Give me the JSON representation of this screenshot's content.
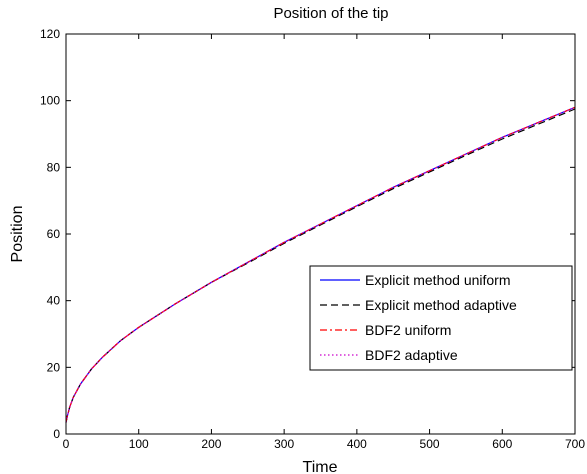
{
  "chart_data": {
    "type": "line",
    "title": "Position of the tip",
    "xlabel": "Time",
    "ylabel": "Position",
    "xlim": [
      0,
      700
    ],
    "ylim": [
      0,
      120
    ],
    "xticks": [
      0,
      100,
      200,
      300,
      400,
      500,
      600,
      700
    ],
    "yticks": [
      0,
      20,
      40,
      60,
      80,
      100,
      120
    ],
    "grid": false,
    "legend_position": "lower-right",
    "x": [
      0,
      2,
      5,
      10,
      20,
      35,
      50,
      75,
      100,
      150,
      200,
      250,
      300,
      350,
      400,
      450,
      500,
      550,
      600,
      650,
      700
    ],
    "series": [
      {
        "name": "Explicit method uniform",
        "color": "#0000ff",
        "dash": "solid",
        "values": [
          3.5,
          5.5,
          8,
          11,
          15,
          19.5,
          23,
          28,
          32,
          39,
          45.5,
          51.5,
          57.5,
          63,
          68.5,
          74,
          79,
          84,
          89,
          93.5,
          98
        ]
      },
      {
        "name": "Explicit method adaptive",
        "color": "#000000",
        "dash": "dashed",
        "values": [
          3.5,
          5.5,
          8,
          11,
          15,
          19.5,
          23,
          28,
          32,
          39,
          45.5,
          51.3,
          57.2,
          62.7,
          68.2,
          73.6,
          78.6,
          83.6,
          88.5,
          93,
          97.5
        ]
      },
      {
        "name": "BDF2 uniform",
        "color": "#ff0000",
        "dash": "dashdot",
        "values": [
          3.5,
          5.5,
          8,
          11,
          15,
          19.5,
          23,
          28,
          32,
          39,
          45.5,
          51.5,
          57.5,
          63,
          68.5,
          74,
          79,
          84,
          89,
          93.5,
          98
        ]
      },
      {
        "name": "BDF2 adaptive",
        "color": "#cc00cc",
        "dash": "dotted",
        "values": [
          3.5,
          5.5,
          8,
          11,
          15,
          19.5,
          23,
          28,
          32,
          39,
          45.5,
          51.5,
          57.5,
          63,
          68.5,
          74,
          79,
          84,
          89,
          93.5,
          98
        ]
      }
    ]
  }
}
